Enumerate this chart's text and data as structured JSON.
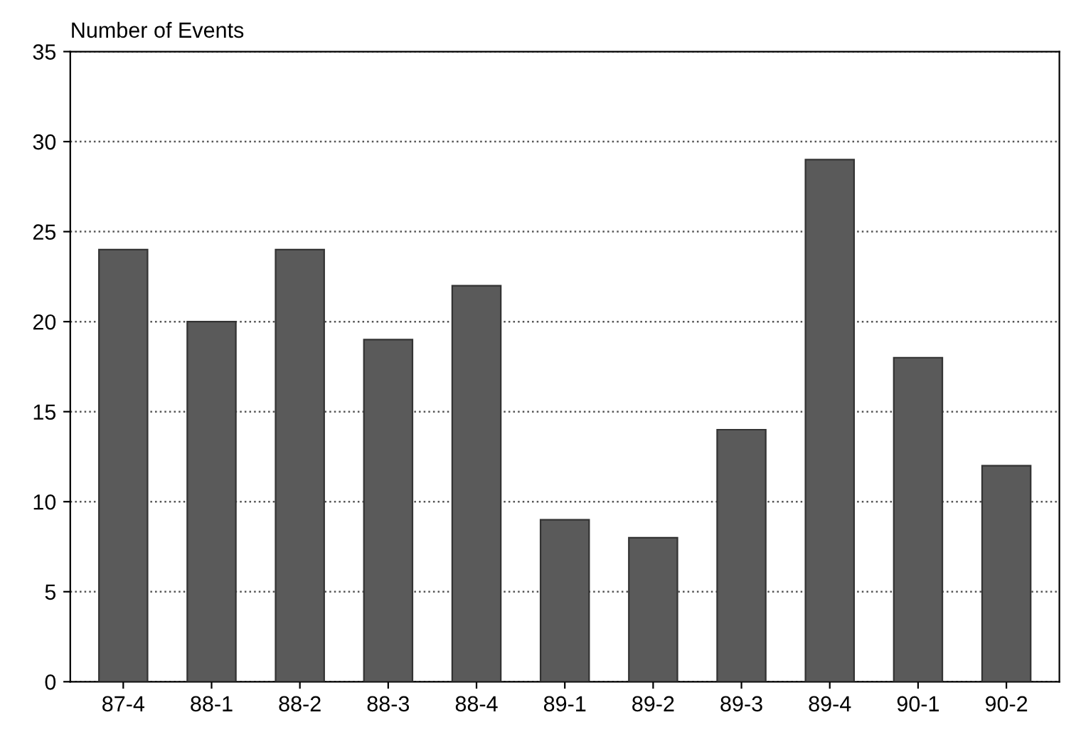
{
  "chart_data": {
    "type": "bar",
    "ylabel": "Number of Events",
    "categories": [
      "87-4",
      "88-1",
      "88-2",
      "88-3",
      "88-4",
      "89-1",
      "89-2",
      "89-3",
      "89-4",
      "90-1",
      "90-2"
    ],
    "values": [
      24,
      20,
      24,
      19,
      22,
      9,
      8,
      14,
      29,
      18,
      12
    ],
    "color": "#5a5a5a",
    "ylim": [
      0,
      35
    ],
    "yticks": [
      0,
      5,
      10,
      15,
      20,
      25,
      30,
      35
    ],
    "grid": "y"
  }
}
